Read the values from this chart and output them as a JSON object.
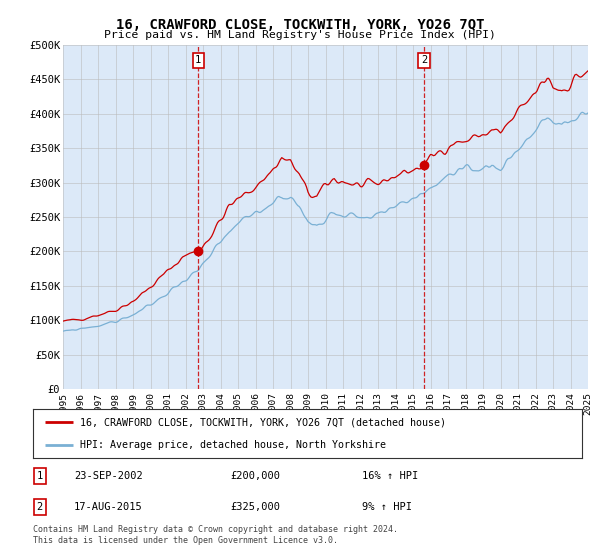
{
  "title": "16, CRAWFORD CLOSE, TOCKWITH, YORK, YO26 7QT",
  "subtitle": "Price paid vs. HM Land Registry's House Price Index (HPI)",
  "plot_bg_color": "#dce9f8",
  "ylim": [
    0,
    500000
  ],
  "yticks": [
    0,
    50000,
    100000,
    150000,
    200000,
    250000,
    300000,
    350000,
    400000,
    450000,
    500000
  ],
  "ytick_labels": [
    "£0",
    "£50K",
    "£100K",
    "£150K",
    "£200K",
    "£250K",
    "£300K",
    "£350K",
    "£400K",
    "£450K",
    "£500K"
  ],
  "xmin_year": 1995,
  "xmax_year": 2025,
  "xticks": [
    1995,
    1996,
    1997,
    1998,
    1999,
    2000,
    2001,
    2002,
    2003,
    2004,
    2005,
    2006,
    2007,
    2008,
    2009,
    2010,
    2011,
    2012,
    2013,
    2014,
    2015,
    2016,
    2017,
    2018,
    2019,
    2020,
    2021,
    2022,
    2023,
    2024,
    2025
  ],
  "grid_color": "#bbbbbb",
  "red_line_color": "#cc0000",
  "blue_line_color": "#7ab0d4",
  "sale1_year": 2002.73,
  "sale1_price": 200000,
  "sale2_year": 2015.63,
  "sale2_price": 325000,
  "legend_label1": "16, CRAWFORD CLOSE, TOCKWITH, YORK, YO26 7QT (detached house)",
  "legend_label2": "HPI: Average price, detached house, North Yorkshire",
  "note1_label": "1",
  "note1_date": "23-SEP-2002",
  "note1_price": "£200,000",
  "note1_hpi": "16% ↑ HPI",
  "note2_label": "2",
  "note2_date": "17-AUG-2015",
  "note2_price": "£325,000",
  "note2_hpi": "9% ↑ HPI",
  "footer": "Contains HM Land Registry data © Crown copyright and database right 2024.\nThis data is licensed under the Open Government Licence v3.0."
}
